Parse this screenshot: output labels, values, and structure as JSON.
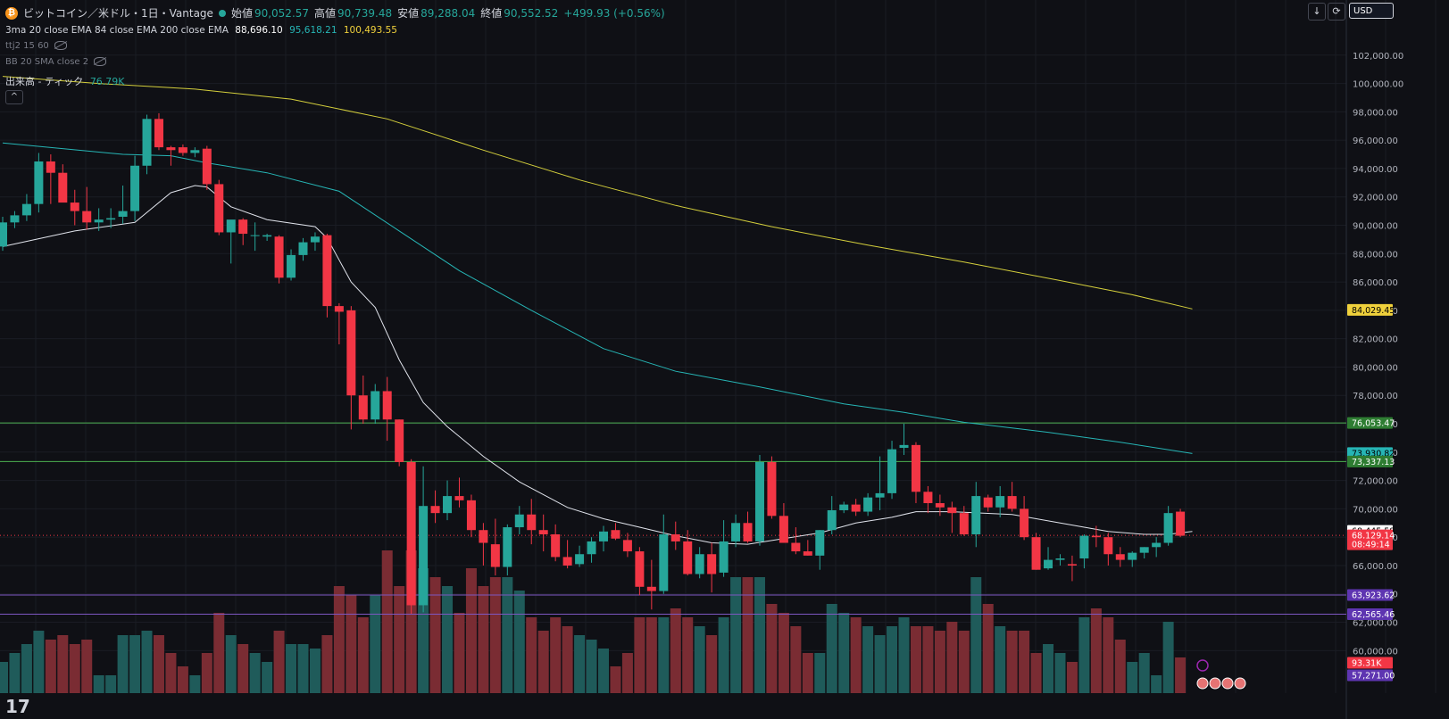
{
  "header": {
    "symbol": "ビットコイン／米ドル・1日・Vantage",
    "open_label": "始値",
    "open": "90,052.57",
    "high_label": "高値",
    "high": "90,739.48",
    "low_label": "安値",
    "low": "89,288.04",
    "close_label": "終値",
    "close": "90,552.52",
    "change": "+499.93 (+0.56%)"
  },
  "indicators": {
    "ma_title": "3ma 20 close EMA 84 close EMA 200 close EMA",
    "ma20": "88,696.10",
    "ma84": "95,618.21",
    "ma200": "100,493.55",
    "ttj": "ttj2 15 60",
    "bb": "BB 20 SMA close 2",
    "volume_label": "出来高 - ティック",
    "volume_value": "76.79K"
  },
  "toolbar": {
    "currency": "USD",
    "collapse": "^",
    "down": "↓",
    "refresh": "⟳"
  },
  "colors": {
    "up": "#26a69a",
    "down": "#f23645",
    "ma20": "#e0e3eb",
    "ma84": "#26b5b5",
    "ma200": "#d4cf3c",
    "bg": "#0f1015",
    "green_line": "#4caf50",
    "purple_line": "#7e57c2"
  },
  "price_labels": [
    {
      "text": "84,029.45",
      "price": 84029.45,
      "bg": "#f0d13c",
      "fg": "#000000"
    },
    {
      "text": "76,053.47",
      "price": 76053.47,
      "bg": "#2e7d32",
      "fg": "#ffffff"
    },
    {
      "text": "73,930.82",
      "price": 73930.82,
      "bg": "#26b5b5",
      "fg": "#000000"
    },
    {
      "text": "73,337.13",
      "price": 73337.13,
      "bg": "#2e7d32",
      "fg": "#ffffff"
    },
    {
      "text": "68,445.58",
      "price": 68445.58,
      "bg": "#ffffff",
      "fg": "#000000"
    },
    {
      "text": "68,129.14",
      "price": 68129.14,
      "bg": "#f23645",
      "fg": "#ffffff"
    },
    {
      "text": "08:49:14",
      "price": 67500,
      "bg": "#f23645",
      "fg": "#ffffff"
    },
    {
      "text": "63,923.62",
      "price": 63923.62,
      "bg": "#5e35b1",
      "fg": "#ffffff"
    },
    {
      "text": "62,565.46",
      "price": 62565.46,
      "bg": "#5e35b1",
      "fg": "#ffffff"
    }
  ],
  "volume_labels": [
    {
      "text": "93.31K",
      "bg": "#f23645",
      "fg": "#ffffff"
    },
    {
      "text": "57,271.00",
      "bg": "#5e35b1",
      "fg": "#ffffff"
    }
  ],
  "chart_data": {
    "type": "candlestick",
    "ylim": [
      57000,
      104000
    ],
    "y_ticks": [
      60000,
      62000,
      64000,
      66000,
      68000,
      70000,
      72000,
      74000,
      76000,
      78000,
      80000,
      82000,
      84000,
      86000,
      88000,
      90000,
      92000,
      94000,
      96000,
      98000,
      100000,
      102000
    ],
    "horizontal_lines": [
      {
        "price": 76053.47,
        "color": "#4caf50"
      },
      {
        "price": 73337.13,
        "color": "#4caf50"
      },
      {
        "price": 63923.62,
        "color": "#7e57c2"
      },
      {
        "price": 62565.46,
        "color": "#7e57c2"
      }
    ],
    "candles": [
      {
        "o": 88500,
        "h": 90600,
        "l": 88200,
        "c": 90200,
        "v": 0.35
      },
      {
        "o": 90200,
        "h": 91000,
        "l": 89800,
        "c": 90700,
        "v": 0.45
      },
      {
        "o": 90700,
        "h": 92200,
        "l": 90300,
        "c": 91500,
        "v": 0.55
      },
      {
        "o": 91500,
        "h": 95100,
        "l": 90900,
        "c": 94500,
        "v": 0.7
      },
      {
        "o": 94500,
        "h": 95000,
        "l": 91500,
        "c": 93700,
        "v": 0.6
      },
      {
        "o": 93700,
        "h": 94300,
        "l": 91700,
        "c": 91600,
        "v": 0.65
      },
      {
        "o": 91600,
        "h": 92500,
        "l": 90000,
        "c": 91000,
        "v": 0.55
      },
      {
        "o": 91000,
        "h": 92700,
        "l": 89700,
        "c": 90200,
        "v": 0.6
      },
      {
        "o": 90200,
        "h": 91200,
        "l": 89600,
        "c": 90400,
        "v": 0.2
      },
      {
        "o": 90400,
        "h": 91200,
        "l": 89800,
        "c": 90500,
        "v": 0.2
      },
      {
        "o": 90600,
        "h": 92800,
        "l": 90100,
        "c": 91000,
        "v": 0.65
      },
      {
        "o": 91000,
        "h": 94900,
        "l": 90300,
        "c": 94200,
        "v": 0.65
      },
      {
        "o": 94200,
        "h": 97800,
        "l": 93600,
        "c": 97500,
        "v": 0.7
      },
      {
        "o": 97500,
        "h": 97900,
        "l": 95300,
        "c": 95500,
        "v": 0.65
      },
      {
        "o": 95500,
        "h": 95600,
        "l": 94200,
        "c": 95300,
        "v": 0.45
      },
      {
        "o": 95500,
        "h": 95700,
        "l": 94900,
        "c": 95100,
        "v": 0.3
      },
      {
        "o": 95100,
        "h": 95500,
        "l": 94800,
        "c": 95300,
        "v": 0.2
      },
      {
        "o": 95400,
        "h": 95600,
        "l": 92500,
        "c": 92900,
        "v": 0.45
      },
      {
        "o": 92900,
        "h": 93200,
        "l": 89300,
        "c": 89500,
        "v": 0.9
      },
      {
        "o": 89500,
        "h": 90200,
        "l": 87300,
        "c": 90400,
        "v": 0.65
      },
      {
        "o": 90400,
        "h": 90500,
        "l": 88600,
        "c": 89400,
        "v": 0.55
      },
      {
        "o": 89300,
        "h": 90200,
        "l": 88200,
        "c": 89300,
        "v": 0.45
      },
      {
        "o": 89200,
        "h": 89400,
        "l": 88900,
        "c": 89300,
        "v": 0.35
      },
      {
        "o": 89200,
        "h": 89300,
        "l": 85900,
        "c": 86300,
        "v": 0.7
      },
      {
        "o": 86300,
        "h": 88300,
        "l": 86100,
        "c": 87900,
        "v": 0.55
      },
      {
        "o": 87900,
        "h": 89100,
        "l": 87500,
        "c": 88800,
        "v": 0.55
      },
      {
        "o": 88800,
        "h": 89500,
        "l": 88200,
        "c": 89200,
        "v": 0.5
      },
      {
        "o": 89300,
        "h": 89400,
        "l": 83500,
        "c": 84300,
        "v": 0.65
      },
      {
        "o": 84300,
        "h": 84500,
        "l": 81600,
        "c": 83900,
        "v": 1.2
      },
      {
        "o": 84000,
        "h": 84300,
        "l": 75600,
        "c": 78000,
        "v": 1.1
      },
      {
        "o": 78000,
        "h": 79400,
        "l": 76000,
        "c": 76300,
        "v": 0.85
      },
      {
        "o": 76300,
        "h": 78800,
        "l": 76000,
        "c": 78300,
        "v": 1.1
      },
      {
        "o": 78300,
        "h": 79300,
        "l": 74800,
        "c": 76300,
        "v": 1.6
      },
      {
        "o": 76300,
        "h": 76300,
        "l": 73000,
        "c": 73300,
        "v": 1.2
      },
      {
        "o": 73300,
        "h": 73500,
        "l": 62600,
        "c": 63200,
        "v": 1.6
      },
      {
        "o": 63200,
        "h": 73000,
        "l": 62700,
        "c": 70200,
        "v": 1.4
      },
      {
        "o": 70200,
        "h": 71300,
        "l": 69000,
        "c": 69700,
        "v": 1.3
      },
      {
        "o": 69700,
        "h": 72000,
        "l": 69200,
        "c": 70900,
        "v": 1.2
      },
      {
        "o": 70900,
        "h": 72200,
        "l": 70100,
        "c": 70600,
        "v": 0.9
      },
      {
        "o": 70600,
        "h": 71000,
        "l": 68000,
        "c": 68500,
        "v": 1.4
      },
      {
        "o": 68500,
        "h": 69000,
        "l": 66000,
        "c": 67600,
        "v": 1.2
      },
      {
        "o": 67500,
        "h": 69300,
        "l": 65300,
        "c": 65900,
        "v": 1.3
      },
      {
        "o": 65900,
        "h": 68900,
        "l": 65300,
        "c": 68700,
        "v": 1.3
      },
      {
        "o": 68700,
        "h": 70200,
        "l": 68200,
        "c": 69600,
        "v": 1.15
      },
      {
        "o": 69600,
        "h": 70700,
        "l": 67500,
        "c": 68500,
        "v": 0.85
      },
      {
        "o": 68500,
        "h": 69600,
        "l": 67000,
        "c": 68200,
        "v": 0.7
      },
      {
        "o": 68200,
        "h": 68900,
        "l": 66300,
        "c": 66600,
        "v": 0.85
      },
      {
        "o": 66600,
        "h": 67800,
        "l": 65800,
        "c": 66000,
        "v": 0.75
      },
      {
        "o": 66100,
        "h": 67400,
        "l": 65900,
        "c": 66800,
        "v": 0.65
      },
      {
        "o": 66800,
        "h": 68000,
        "l": 66200,
        "c": 67700,
        "v": 0.6
      },
      {
        "o": 67700,
        "h": 68800,
        "l": 67000,
        "c": 68400,
        "v": 0.5
      },
      {
        "o": 68500,
        "h": 69000,
        "l": 67800,
        "c": 67900,
        "v": 0.3
      },
      {
        "o": 67800,
        "h": 68300,
        "l": 66600,
        "c": 67000,
        "v": 0.45
      },
      {
        "o": 67000,
        "h": 67300,
        "l": 63900,
        "c": 64500,
        "v": 0.85
      },
      {
        "o": 64500,
        "h": 66400,
        "l": 62900,
        "c": 64200,
        "v": 0.85
      },
      {
        "o": 64200,
        "h": 69600,
        "l": 64000,
        "c": 68200,
        "v": 0.85
      },
      {
        "o": 68200,
        "h": 69100,
        "l": 67100,
        "c": 67700,
        "v": 0.95
      },
      {
        "o": 67700,
        "h": 68500,
        "l": 65300,
        "c": 65400,
        "v": 0.85
      },
      {
        "o": 65400,
        "h": 67300,
        "l": 65100,
        "c": 66800,
        "v": 0.75
      },
      {
        "o": 66800,
        "h": 67600,
        "l": 64100,
        "c": 65400,
        "v": 0.65
      },
      {
        "o": 65500,
        "h": 69200,
        "l": 65200,
        "c": 67700,
        "v": 0.85
      },
      {
        "o": 67700,
        "h": 69600,
        "l": 67300,
        "c": 69000,
        "v": 1.3
      },
      {
        "o": 69000,
        "h": 69800,
        "l": 67600,
        "c": 67700,
        "v": 1.3
      },
      {
        "o": 67700,
        "h": 73800,
        "l": 67400,
        "c": 73300,
        "v": 1.3
      },
      {
        "o": 73300,
        "h": 73700,
        "l": 69300,
        "c": 69500,
        "v": 1.0
      },
      {
        "o": 69500,
        "h": 70400,
        "l": 67600,
        "c": 67600,
        "v": 0.9
      },
      {
        "o": 67600,
        "h": 68700,
        "l": 66800,
        "c": 67000,
        "v": 0.75
      },
      {
        "o": 67000,
        "h": 67800,
        "l": 66700,
        "c": 66700,
        "v": 0.45
      },
      {
        "o": 66700,
        "h": 68500,
        "l": 65700,
        "c": 68500,
        "v": 0.45
      },
      {
        "o": 68500,
        "h": 70900,
        "l": 68200,
        "c": 69900,
        "v": 1.0
      },
      {
        "o": 69900,
        "h": 70500,
        "l": 69700,
        "c": 70300,
        "v": 0.9
      },
      {
        "o": 70300,
        "h": 70700,
        "l": 69500,
        "c": 69800,
        "v": 0.85
      },
      {
        "o": 69800,
        "h": 71100,
        "l": 69500,
        "c": 70800,
        "v": 0.75
      },
      {
        "o": 70800,
        "h": 73700,
        "l": 69900,
        "c": 71100,
        "v": 0.65
      },
      {
        "o": 71100,
        "h": 74800,
        "l": 70700,
        "c": 74200,
        "v": 0.75
      },
      {
        "o": 74300,
        "h": 76000,
        "l": 73800,
        "c": 74500,
        "v": 0.85
      },
      {
        "o": 74500,
        "h": 74700,
        "l": 70400,
        "c": 71200,
        "v": 0.75
      },
      {
        "o": 71200,
        "h": 71600,
        "l": 69700,
        "c": 70400,
        "v": 0.75
      },
      {
        "o": 70400,
        "h": 71000,
        "l": 69500,
        "c": 70100,
        "v": 0.7
      },
      {
        "o": 70100,
        "h": 70500,
        "l": 68300,
        "c": 69700,
        "v": 0.8
      },
      {
        "o": 69700,
        "h": 70200,
        "l": 68100,
        "c": 68200,
        "v": 0.7
      },
      {
        "o": 68200,
        "h": 71900,
        "l": 67300,
        "c": 70900,
        "v": 1.3
      },
      {
        "o": 70800,
        "h": 71000,
        "l": 69800,
        "c": 70100,
        "v": 1.0
      },
      {
        "o": 70100,
        "h": 71600,
        "l": 69400,
        "c": 70900,
        "v": 0.75
      },
      {
        "o": 70900,
        "h": 71900,
        "l": 69800,
        "c": 70000,
        "v": 0.7
      },
      {
        "o": 70000,
        "h": 70900,
        "l": 67800,
        "c": 68000,
        "v": 0.7
      },
      {
        "o": 68000,
        "h": 68300,
        "l": 65700,
        "c": 65700,
        "v": 0.45
      },
      {
        "o": 65800,
        "h": 67300,
        "l": 65700,
        "c": 66400,
        "v": 0.55
      },
      {
        "o": 66400,
        "h": 66800,
        "l": 66000,
        "c": 66500,
        "v": 0.45
      },
      {
        "o": 66100,
        "h": 66700,
        "l": 64900,
        "c": 66000,
        "v": 0.35
      },
      {
        "o": 66500,
        "h": 68200,
        "l": 65800,
        "c": 68100,
        "v": 0.85
      },
      {
        "o": 68100,
        "h": 68800,
        "l": 67300,
        "c": 68000,
        "v": 0.95
      },
      {
        "o": 68000,
        "h": 68300,
        "l": 66000,
        "c": 66800,
        "v": 0.85
      },
      {
        "o": 66800,
        "h": 67300,
        "l": 65900,
        "c": 66400,
        "v": 0.6
      },
      {
        "o": 66400,
        "h": 67000,
        "l": 65900,
        "c": 66900,
        "v": 0.35
      },
      {
        "o": 66900,
        "h": 67300,
        "l": 66500,
        "c": 67300,
        "v": 0.45
      },
      {
        "o": 67300,
        "h": 68000,
        "l": 66600,
        "c": 67600,
        "v": 0.2
      },
      {
        "o": 67600,
        "h": 70200,
        "l": 67400,
        "c": 69700,
        "v": 0.8
      },
      {
        "o": 69800,
        "h": 70000,
        "l": 68000,
        "c": 68100,
        "v": 0.4
      }
    ],
    "ma20_points": [
      [
        0,
        88500
      ],
      [
        6,
        89600
      ],
      [
        11,
        90200
      ],
      [
        14,
        92300
      ],
      [
        16,
        92800
      ],
      [
        17,
        92700
      ],
      [
        19,
        91300
      ],
      [
        22,
        90400
      ],
      [
        26,
        89900
      ],
      [
        27,
        89100
      ],
      [
        29,
        86000
      ],
      [
        31,
        84200
      ],
      [
        33,
        80500
      ],
      [
        35,
        77500
      ],
      [
        37,
        75800
      ],
      [
        40,
        73700
      ],
      [
        43,
        71900
      ],
      [
        47,
        70100
      ],
      [
        50,
        69300
      ],
      [
        53,
        68700
      ],
      [
        56,
        68100
      ],
      [
        59,
        67600
      ],
      [
        62,
        67500
      ],
      [
        65,
        67900
      ],
      [
        68,
        68300
      ],
      [
        71,
        69000
      ],
      [
        74,
        69400
      ],
      [
        76,
        69800
      ],
      [
        79,
        69800
      ],
      [
        84,
        69600
      ],
      [
        88,
        69000
      ],
      [
        92,
        68400
      ],
      [
        95,
        68200
      ],
      [
        97,
        68200
      ],
      [
        99,
        68400
      ]
    ],
    "ma84_points": [
      [
        0,
        95800
      ],
      [
        10,
        95000
      ],
      [
        14,
        94900
      ],
      [
        17,
        94400
      ],
      [
        22,
        93700
      ],
      [
        28,
        92400
      ],
      [
        33,
        89600
      ],
      [
        38,
        86800
      ],
      [
        44,
        84000
      ],
      [
        50,
        81300
      ],
      [
        56,
        79700
      ],
      [
        63,
        78600
      ],
      [
        70,
        77400
      ],
      [
        75,
        76800
      ],
      [
        80,
        76100
      ],
      [
        87,
        75400
      ],
      [
        93,
        74700
      ],
      [
        99,
        73900
      ]
    ],
    "ma200_points": [
      [
        0,
        100500
      ],
      [
        8,
        100000
      ],
      [
        16,
        99600
      ],
      [
        24,
        98900
      ],
      [
        32,
        97500
      ],
      [
        40,
        95300
      ],
      [
        48,
        93200
      ],
      [
        56,
        91400
      ],
      [
        64,
        89900
      ],
      [
        72,
        88600
      ],
      [
        80,
        87400
      ],
      [
        88,
        86100
      ],
      [
        94,
        85100
      ],
      [
        99,
        84100
      ]
    ]
  }
}
